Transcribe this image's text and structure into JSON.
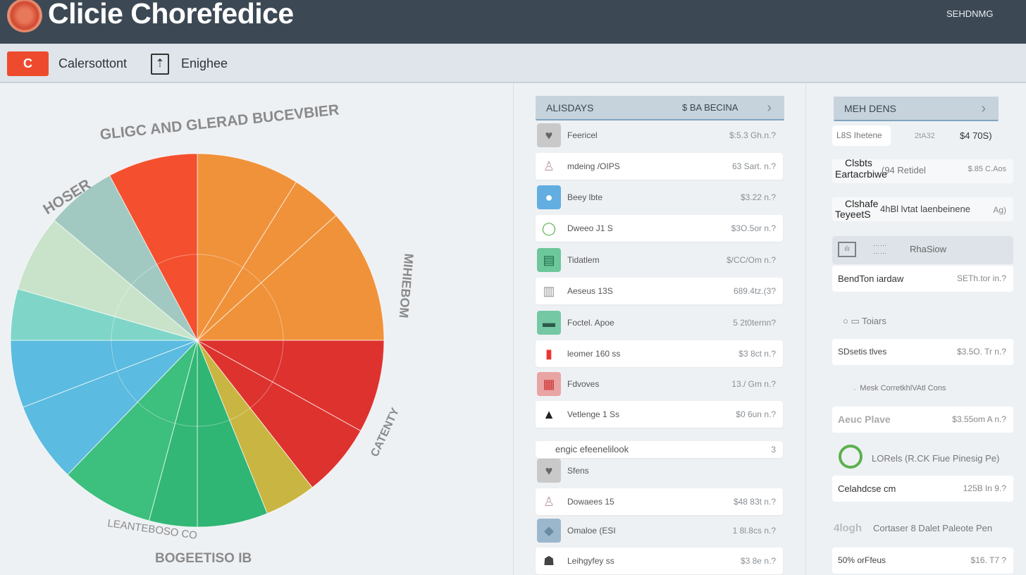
{
  "header": {
    "title": "Clicie Chorefedice",
    "right_label": "SEHDNMG"
  },
  "toolbar": {
    "button_glyph": "C",
    "label1": "Calersottont",
    "icon": "document-icon",
    "label2": "Enighee"
  },
  "chart_data": {
    "type": "pie",
    "title": "GLIGC AND GLERAD BUCEVBIER",
    "labels_around": [
      "HOSER",
      "MIHIEBOM",
      "CATENTY",
      "LEANTEBOSO CO",
      "BOGEETISO IB"
    ],
    "slices": [
      {
        "color": "#f0923a",
        "value": 32
      },
      {
        "color": "#f0923a",
        "value": 16
      },
      {
        "color": "#f0923a",
        "value": 42
      },
      {
        "color": "#dd322e",
        "value": 29
      },
      {
        "color": "#dd322e",
        "value": 23
      },
      {
        "color": "#c9b541",
        "value": 16
      },
      {
        "color": "#2fb574",
        "value": 22
      },
      {
        "color": "#33b776",
        "value": 15
      },
      {
        "color": "#3dbf7e",
        "value": 29
      },
      {
        "color": "#5bbbe0",
        "value": 25
      },
      {
        "color": "#5bbbe0",
        "value": 21
      },
      {
        "color": "#7fd6c8",
        "value": 16
      },
      {
        "color": "#c8e3c9",
        "value": 24
      },
      {
        "color": "#a1c9c1",
        "value": 22
      },
      {
        "color": "#f44f2e",
        "value": 28
      }
    ]
  },
  "list": {
    "header": "ALISDAYS",
    "header_value": "$ BA BECINA",
    "rows": [
      {
        "name": "Feericel",
        "value": "$:5.3 Gh.n.?",
        "card": false,
        "icon": "heart-icon",
        "color": "#c9c9c9"
      },
      {
        "name": "mdeing /OIPS",
        "value": "63 Sart. n.?",
        "card": true,
        "icon": "figure-icon",
        "color": "#ffffff"
      },
      {
        "name": "Beey lbte",
        "value": "$3.22 n.?",
        "card": false,
        "icon": "app-icon",
        "color": "#62aee0"
      },
      {
        "name": "Dweeo J1 S",
        "value": "$3O.5or n.?",
        "card": true,
        "icon": "ring-icon",
        "color": "#ffffff"
      },
      {
        "name": "Tidatlem",
        "value": "$/CC/Om n.?",
        "card": false,
        "icon": "terminal-icon",
        "color": "#6cc79a"
      },
      {
        "name": "Aeseus 13S",
        "value": "689.4tz.(3?",
        "card": true,
        "icon": "building-icon",
        "color": "#ffffff"
      },
      {
        "name": "Foctel. Apoe",
        "value": "5 2t0ternn?",
        "card": false,
        "icon": "card-icon",
        "color": "#74c9a4"
      },
      {
        "name": "leomer 160 ss",
        "value": "$3 8ct n.?",
        "card": true,
        "icon": "chart-icon",
        "color": "#ffffff"
      },
      {
        "name": "Fdvoves",
        "value": "13./ Gm n.?",
        "card": false,
        "icon": "pattern-icon",
        "color": "#e9a4a4"
      },
      {
        "name": "Vetlenge 1 Ss",
        "value": "$0 6un n.?",
        "card": true,
        "icon": "triangle-icon",
        "color": "#ffffff"
      }
    ],
    "subheader": "engic efeenelilook",
    "subheader_value": "3",
    "rows2": [
      {
        "name": "Sfens",
        "value": "",
        "card": false,
        "icon": "heart-icon",
        "color": "#c9c9c9"
      },
      {
        "name": "Dowaees 15",
        "value": "$48 83t n.?",
        "card": true,
        "icon": "figure-icon",
        "color": "#ffffff"
      },
      {
        "name": "Omaloe (ESI",
        "value": "1 8l.8cs n.?",
        "card": false,
        "icon": "map-icon",
        "color": "#9bb7cb"
      },
      {
        "name": "Leihgyfey ss",
        "value": "$3 8e n.?",
        "card": true,
        "icon": "robot-icon",
        "color": "#ffffff"
      }
    ]
  },
  "right": {
    "header": "MEH DENS",
    "top": {
      "name": "L8S Ihetene",
      "mid": "2tA32",
      "value": "$4 70S)"
    },
    "rows": [
      {
        "line1": "Clsbts",
        "line2": "Eartacrbiwe",
        "name": "(94 Retidel",
        "value": "$.85 C.Aos"
      },
      {
        "line1": "Clshafe",
        "line2": "TeyeetS",
        "name": "4hBl lvtat laenbeinene",
        "value": "Ag)"
      }
    ],
    "block_label": "RhaSiow",
    "block_row": {
      "name": "BendTon iardaw",
      "value": "SETh.tor in.?"
    },
    "sec1": "Toiars",
    "sec1_row": {
      "name": "SDsetis tlves",
      "value": "$3.5O. Tr n.?"
    },
    "sec2": "Mesk CorretkhlVAtl Cons",
    "sec2_row": {
      "name": "Aeuc Plave",
      "value": "$3.55om A n.?"
    },
    "sec3": "LORels (R.CK Fiue Pinesig Pe)",
    "sec3_row": {
      "name": "Celahdcse cm",
      "value": "125B In 9.?"
    },
    "sec4_glyph": "4logh",
    "sec4": "Cortaser 8 Dalet Paleote Pen",
    "sec4_row": {
      "name": "50% orFfeus",
      "value": "$16. T7 ?"
    }
  }
}
